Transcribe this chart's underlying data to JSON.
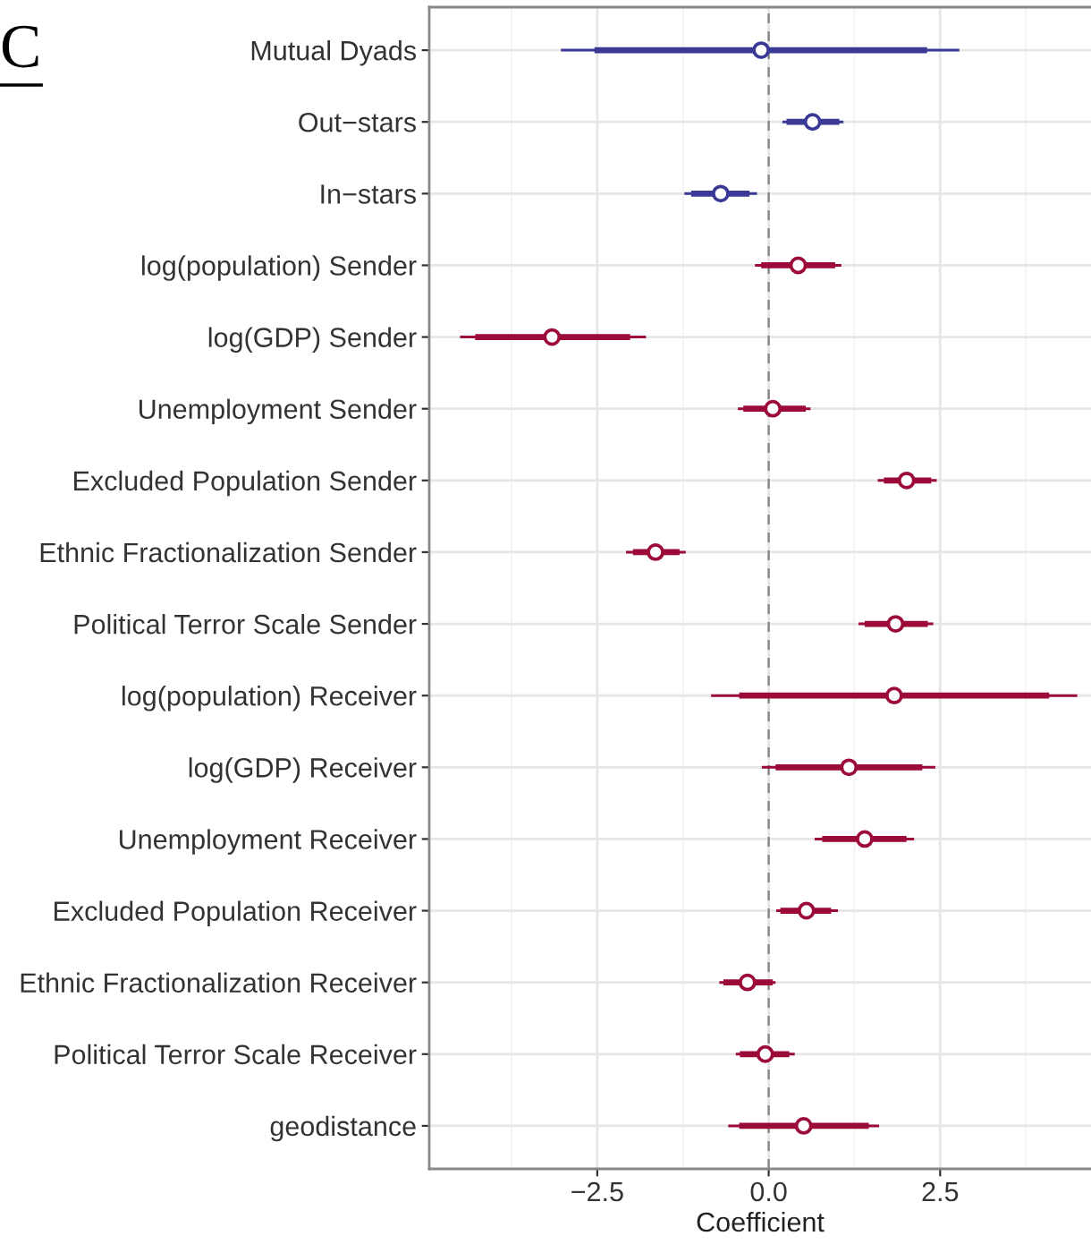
{
  "chart_data": {
    "type": "scatter",
    "orientation": "horizontal",
    "title": "C",
    "xlabel": "Coefficient",
    "categories": [
      "Mutual Dyads",
      "Out−stars",
      "In−stars",
      "log(population) Sender",
      "log(GDP) Sender",
      "Unemployment Sender",
      "Excluded Population Sender",
      "Ethnic Fractionalization Sender",
      "Political Terror Scale Sender",
      "log(population) Receiver",
      "log(GDP) Receiver",
      "Unemployment Receiver",
      "Excluded Population Receiver",
      "Ethnic Fractionalization Receiver",
      "Political Terror Scale Receiver",
      "geodistance"
    ],
    "xlim": [
      -4.95,
      4.7
    ],
    "xticks": [
      {
        "value": -3.75,
        "label": null
      },
      {
        "value": -2.5,
        "label": "−2.5"
      },
      {
        "value": -1.25,
        "label": null
      },
      {
        "value": 0,
        "label": "0.0"
      },
      {
        "value": 1.25,
        "label": null
      },
      {
        "value": 2.5,
        "label": "2.5"
      },
      {
        "value": 3.75,
        "label": null
      }
    ],
    "grid": true,
    "marker": "circle",
    "ref_lines": [
      {
        "axis": "x",
        "value": 0,
        "color": "#808080",
        "line_style": "dashed"
      }
    ],
    "series": [
      {
        "type": "bar",
        "base": [
          -2.54,
          0.26,
          -1.13,
          -0.11,
          -4.28,
          -0.37,
          1.68,
          -1.98,
          1.4,
          -0.43,
          0.1,
          0.78,
          0.17,
          -0.66,
          -0.42,
          -0.43
        ],
        "values": [
          4.85,
          0.77,
          0.85,
          1.08,
          2.26,
          0.91,
          0.69,
          0.68,
          0.92,
          4.52,
          2.14,
          1.23,
          0.74,
          0.72,
          0.72,
          1.89
        ],
        "colors": [
          "#3a3a96",
          "#3a3a96",
          "#3a3a96",
          "#9c0a38",
          "#9c0a38",
          "#9c0a38",
          "#9c0a38",
          "#9c0a38",
          "#9c0a38",
          "#9c0a38",
          "#9c0a38",
          "#9c0a38",
          "#9c0a38",
          "#9c0a38",
          "#9c0a38",
          "#9c0a38"
        ]
      },
      {
        "values": [
          -0.11,
          0.64,
          -0.7,
          0.43,
          -3.16,
          0.06,
          2.01,
          -1.65,
          1.85,
          1.83,
          1.17,
          1.4,
          0.55,
          -0.31,
          -0.05,
          0.51
        ],
        "errors": [
          [
            -3.03,
            2.78
          ],
          [
            0.2,
            1.09
          ],
          [
            -1.23,
            -0.17
          ],
          [
            -0.2,
            1.06
          ],
          [
            -4.5,
            -1.79
          ],
          [
            -0.45,
            0.61
          ],
          [
            1.59,
            2.45
          ],
          [
            -2.08,
            -1.21
          ],
          [
            1.31,
            2.4
          ],
          [
            -0.84,
            4.5
          ],
          [
            -0.1,
            2.43
          ],
          [
            0.67,
            2.12
          ],
          [
            0.11,
            1.01
          ],
          [
            -0.72,
            0.1
          ],
          [
            -0.48,
            0.38
          ],
          [
            -0.59,
            1.61
          ]
        ],
        "colors": [
          "#3a3a96",
          "#3a3a96",
          "#3a3a96",
          "#9c0a38",
          "#9c0a38",
          "#9c0a38",
          "#9c0a38",
          "#9c0a38",
          "#9c0a38",
          "#9c0a38",
          "#9c0a38",
          "#9c0a38",
          "#9c0a38",
          "#9c0a38",
          "#9c0a38",
          "#9c0a38"
        ]
      }
    ]
  }
}
